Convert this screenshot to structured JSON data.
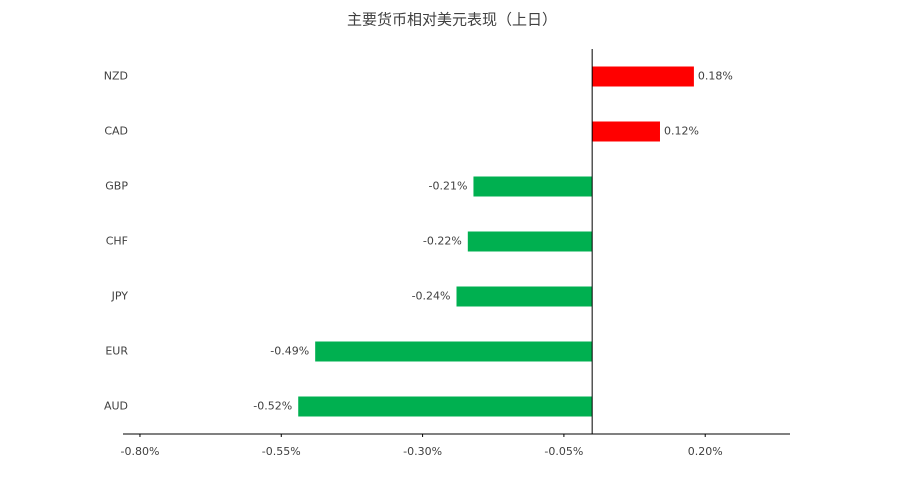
{
  "chart_data": {
    "type": "bar",
    "orientation": "horizontal",
    "title": "主要货币相对美元表现（上日）",
    "categories": [
      "NZD",
      "CAD",
      "GBP",
      "CHF",
      "JPY",
      "EUR",
      "AUD"
    ],
    "values": [
      0.18,
      0.12,
      -0.21,
      -0.22,
      -0.24,
      -0.49,
      -0.52
    ],
    "value_labels": [
      "0.18%",
      "0.12%",
      "-0.21%",
      "-0.22%",
      "-0.24%",
      "-0.49%",
      "-0.52%"
    ],
    "colors": [
      "#ff0000",
      "#ff0000",
      "#00b050",
      "#00b050",
      "#00b050",
      "#00b050",
      "#00b050"
    ],
    "xlim": [
      -0.83,
      0.35
    ],
    "xticks": [
      {
        "value": -0.8,
        "label": "-0.80%"
      },
      {
        "value": -0.55,
        "label": "-0.55%"
      },
      {
        "value": -0.3,
        "label": "-0.30%"
      },
      {
        "value": -0.05,
        "label": "-0.05%"
      },
      {
        "value": 0.2,
        "label": "0.20%"
      }
    ],
    "grid": false
  }
}
